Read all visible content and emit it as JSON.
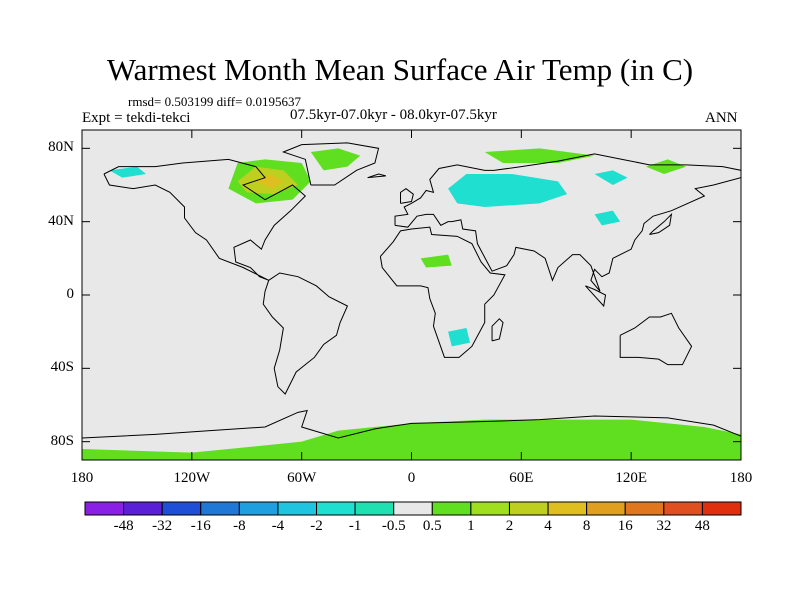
{
  "title": "Warmest Month Mean Surface Air Temp (in C)",
  "stats": "rmsd= 0.503199 diff= 0.0195637",
  "expt": "Expt = tekdi-tekci",
  "period": "07.5kyr-07.0kyr - 08.0kyr-07.5kyr",
  "season": "ANN",
  "lat_ticks": [
    {
      "label": "80N",
      "lat": 80
    },
    {
      "label": "40N",
      "lat": 40
    },
    {
      "label": "0",
      "lat": 0
    },
    {
      "label": "40S",
      "lat": -40
    },
    {
      "label": "80S",
      "lat": -80
    }
  ],
  "lon_ticks": [
    {
      "label": "180",
      "lon": -180
    },
    {
      "label": "120W",
      "lon": -120
    },
    {
      "label": "60W",
      "lon": -60
    },
    {
      "label": "0",
      "lon": 0
    },
    {
      "label": "60E",
      "lon": 60
    },
    {
      "label": "120E",
      "lon": 120
    },
    {
      "label": "180",
      "lon": 180
    }
  ],
  "colorbar": {
    "colors": [
      "#8a1fe6",
      "#5a1fd6",
      "#1f4fd6",
      "#1f77d6",
      "#1f9fe0",
      "#1fc4e0",
      "#1fdfd0",
      "#1fe0b0",
      "#e8e8e8",
      "#5fdf1f",
      "#9fdf1f",
      "#bfcf1f",
      "#dfbf1f",
      "#e09f1f",
      "#e0771f",
      "#e04f1f",
      "#e02f0f"
    ],
    "labels": [
      "-48",
      "-32",
      "-16",
      "-8",
      "-4",
      "-2",
      "-1",
      "-0.5",
      "0.5",
      "1",
      "2",
      "4",
      "8",
      "16",
      "32",
      "48"
    ]
  },
  "map_colors": {
    "background": "#e8e8e8",
    "coast": "#000000"
  },
  "regions": [
    {
      "name": "canada-arctic-warming",
      "color": "#5fdf1f",
      "pts": [
        [
          -100,
          58
        ],
        [
          -95,
          72
        ],
        [
          -80,
          74
        ],
        [
          -60,
          72
        ],
        [
          -55,
          62
        ],
        [
          -65,
          52
        ],
        [
          -85,
          50
        ]
      ]
    },
    {
      "name": "canada-strong-warming",
      "color": "#bfcf1f",
      "pts": [
        [
          -95,
          62
        ],
        [
          -85,
          70
        ],
        [
          -70,
          68
        ],
        [
          -62,
          60
        ],
        [
          -75,
          55
        ],
        [
          -90,
          56
        ]
      ]
    },
    {
      "name": "canada-peak-warming",
      "color": "#dfbf1f",
      "pts": [
        [
          -85,
          62
        ],
        [
          -78,
          66
        ],
        [
          -70,
          62
        ],
        [
          -76,
          58
        ]
      ]
    },
    {
      "name": "greenland-warming",
      "color": "#5fdf1f",
      "pts": [
        [
          -55,
          78
        ],
        [
          -40,
          80
        ],
        [
          -28,
          76
        ],
        [
          -35,
          70
        ],
        [
          -48,
          68
        ]
      ]
    },
    {
      "name": "eurasia-cooling",
      "color": "#1fdfd0",
      "pts": [
        [
          20,
          58
        ],
        [
          30,
          66
        ],
        [
          55,
          66
        ],
        [
          80,
          62
        ],
        [
          85,
          55
        ],
        [
          70,
          50
        ],
        [
          40,
          48
        ],
        [
          25,
          50
        ]
      ]
    },
    {
      "name": "siberia-cooling",
      "color": "#1fdfd0",
      "pts": [
        [
          100,
          66
        ],
        [
          110,
          68
        ],
        [
          118,
          64
        ],
        [
          110,
          60
        ]
      ]
    },
    {
      "name": "arctic-coast-warming",
      "color": "#5fdf1f",
      "pts": [
        [
          40,
          78
        ],
        [
          70,
          80
        ],
        [
          100,
          76
        ],
        [
          80,
          72
        ],
        [
          50,
          72
        ]
      ]
    },
    {
      "name": "east-siberia-warming",
      "color": "#5fdf1f",
      "pts": [
        [
          128,
          70
        ],
        [
          140,
          74
        ],
        [
          150,
          70
        ],
        [
          138,
          66
        ]
      ]
    },
    {
      "name": "china-cooling",
      "color": "#1fdfd0",
      "pts": [
        [
          100,
          44
        ],
        [
          110,
          46
        ],
        [
          114,
          40
        ],
        [
          104,
          38
        ]
      ]
    },
    {
      "name": "alaska-cooling",
      "color": "#1fdfd0",
      "pts": [
        [
          -165,
          68
        ],
        [
          -150,
          70
        ],
        [
          -145,
          66
        ],
        [
          -158,
          64
        ]
      ]
    },
    {
      "name": "southern-africa-cooling",
      "color": "#1fdfd0",
      "pts": [
        [
          20,
          -20
        ],
        [
          30,
          -18
        ],
        [
          32,
          -26
        ],
        [
          22,
          -28
        ]
      ]
    },
    {
      "name": "sahara-warming",
      "color": "#5fdf1f",
      "pts": [
        [
          5,
          20
        ],
        [
          20,
          22
        ],
        [
          22,
          16
        ],
        [
          8,
          15
        ]
      ]
    },
    {
      "name": "antarctica-warming",
      "color": "#5fdf1f",
      "pts": [
        [
          -180,
          -84
        ],
        [
          -120,
          -86
        ],
        [
          -60,
          -80
        ],
        [
          -40,
          -74
        ],
        [
          0,
          -70
        ],
        [
          40,
          -68
        ],
        [
          80,
          -68
        ],
        [
          120,
          -68
        ],
        [
          160,
          -72
        ],
        [
          180,
          -76
        ],
        [
          180,
          -90
        ],
        [
          -180,
          -90
        ]
      ]
    }
  ]
}
